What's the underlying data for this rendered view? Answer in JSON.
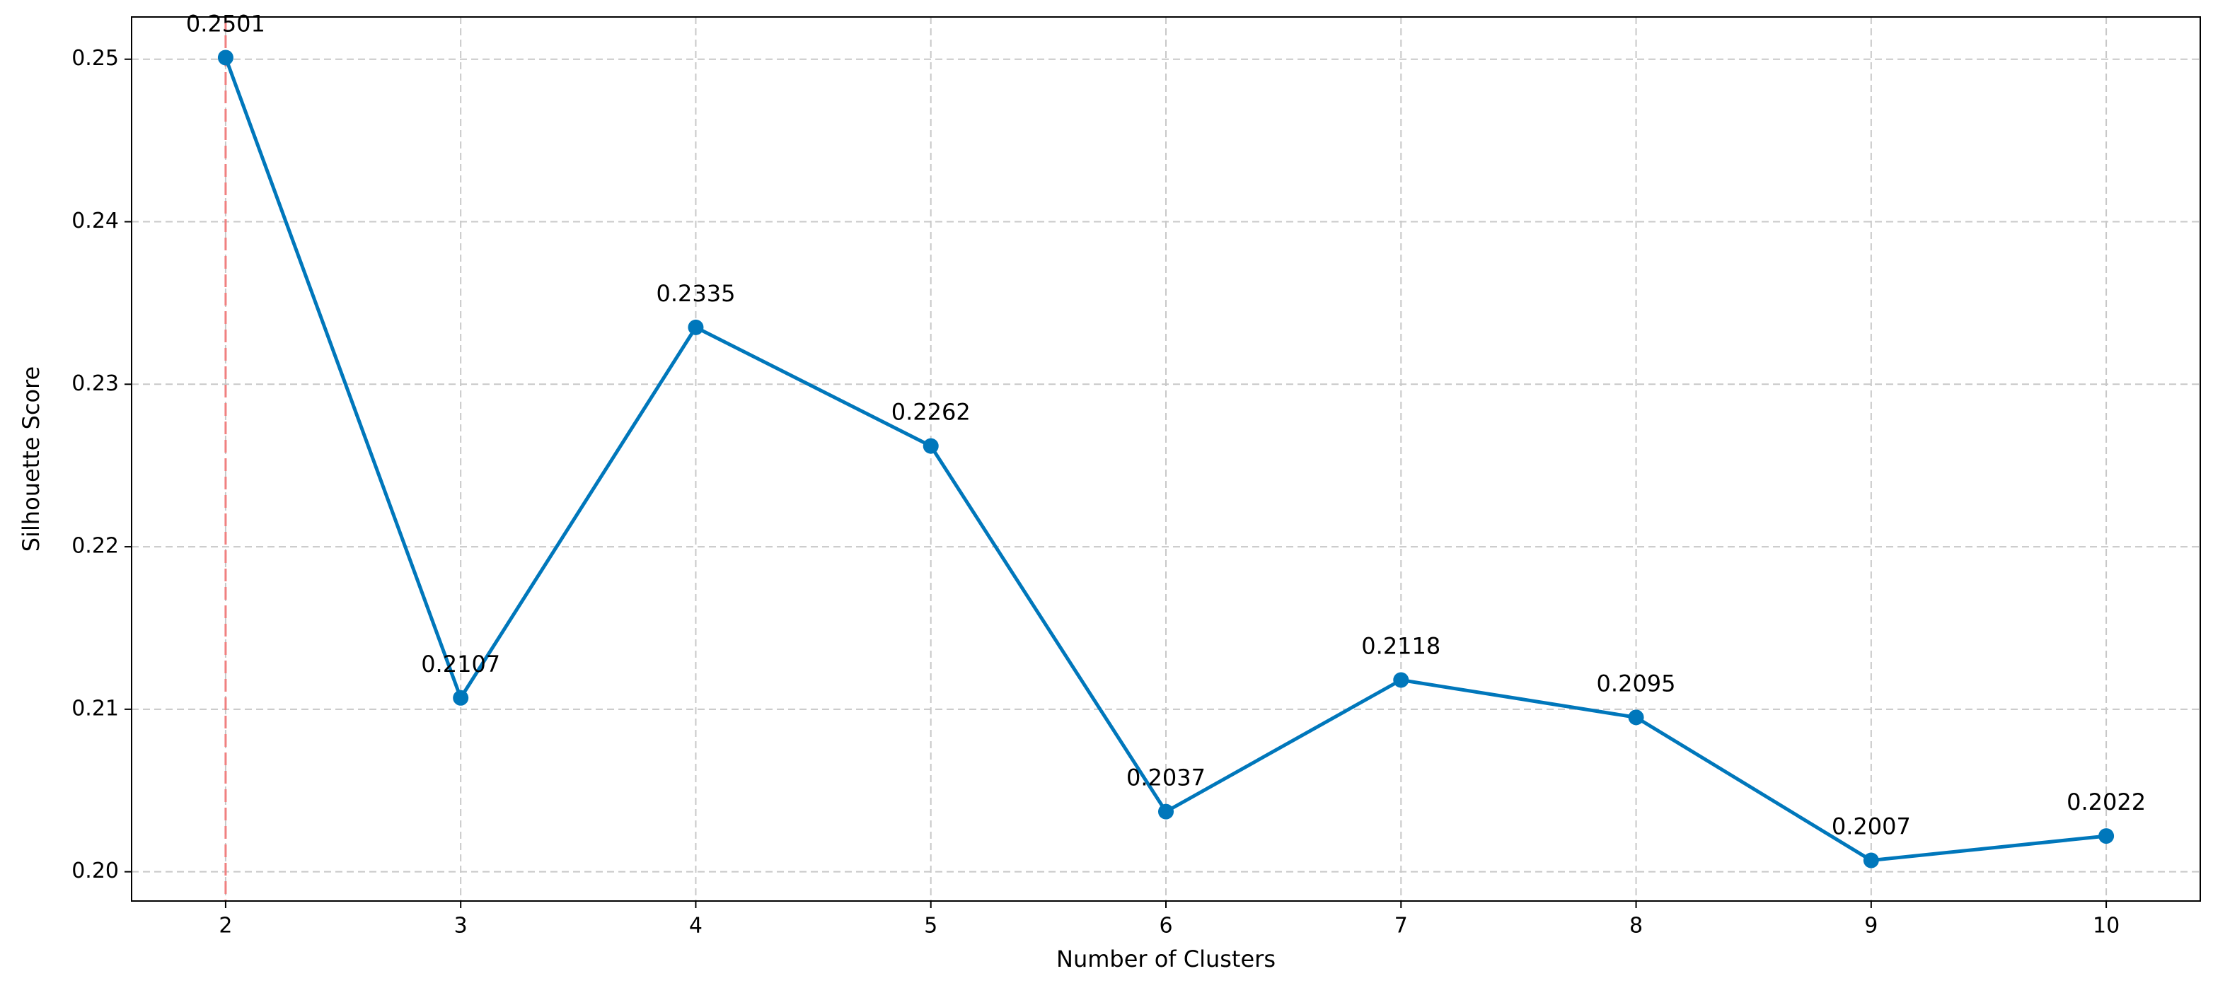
{
  "chart_data": {
    "type": "line",
    "xlabel": "Number of Clusters",
    "ylabel": "Silhouette Score",
    "x": [
      2,
      3,
      4,
      5,
      6,
      7,
      8,
      9,
      10
    ],
    "series": [
      {
        "color": "#0077bb",
        "values": [
          0.2501,
          0.2107,
          0.2335,
          0.2262,
          0.2037,
          0.2118,
          0.2095,
          0.2007,
          0.2022
        ]
      }
    ],
    "xlim": [
      1.6,
      10.4
    ],
    "ylim": [
      0.1982,
      0.2526
    ],
    "xticks": [
      2,
      3,
      4,
      5,
      6,
      7,
      8,
      9,
      10
    ],
    "yticks": [
      {
        "value": 0.2,
        "label": "0.20"
      },
      0.21,
      0.22,
      0.23,
      0.24,
      0.25
    ],
    "grid": true,
    "vlines": [
      {
        "x": 2,
        "color": "#f08080"
      }
    ]
  }
}
